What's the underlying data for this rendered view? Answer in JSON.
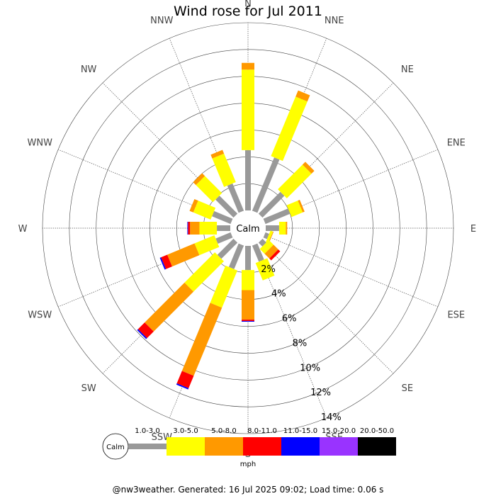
{
  "chart_data": {
    "type": "wind-rose",
    "title": "Wind rose for Jul 2011",
    "calm_label": "Calm",
    "directions": [
      "N",
      "NNE",
      "NE",
      "ENE",
      "E",
      "ESE",
      "SE",
      "SSE",
      "S",
      "SSW",
      "SW",
      "WSW",
      "W",
      "WNW",
      "NW",
      "NNW"
    ],
    "radial_ticks": [
      "2%",
      "4%",
      "6%",
      "8%",
      "10%",
      "12%",
      "14%"
    ],
    "rmax": 14,
    "unit": "mph",
    "speed_bins": [
      {
        "label": "1.0-3.0",
        "color": "#999999"
      },
      {
        "label": "3.0-5.0",
        "color": "#ffff00"
      },
      {
        "label": "5.0-8.0",
        "color": "#ff9900"
      },
      {
        "label": "8.0-11.0",
        "color": "#ff0000"
      },
      {
        "label": "11.0-15.0",
        "color": "#0000ff"
      },
      {
        "label": "15.0-20.0",
        "color": "#9933ff"
      },
      {
        "label": "20.0-50.0",
        "color": "#000000"
      }
    ],
    "series": [
      {
        "name": "1.0-3.0",
        "values": [
          4.5,
          4.3,
          2.3,
          2.0,
          1.0,
          0.3,
          0.4,
          1.3,
          1.8,
          1.9,
          1.7,
          1.2,
          1.0,
          1.5,
          1.9,
          2.2
        ]
      },
      {
        "name": "3.0-5.0",
        "values": [
          6.0,
          4.8,
          2.6,
          0.9,
          0.5,
          0.2,
          0.5,
          1.4,
          1.5,
          3.0,
          3.2,
          1.6,
          1.3,
          1.4,
          1.8,
          2.3
        ]
      },
      {
        "name": "5.0-8.0",
        "values": [
          0.5,
          0.5,
          0.3,
          0.15,
          0.1,
          0.05,
          0.5,
          0.0,
          2.2,
          5.5,
          4.2,
          2.2,
          0.7,
          0.3,
          0.3,
          0.3
        ]
      },
      {
        "name": "8.0-11.0",
        "values": [
          0,
          0,
          0,
          0,
          0,
          0,
          0.2,
          0,
          0.1,
          1.0,
          0.7,
          0.5,
          0.15,
          0,
          0,
          0
        ]
      },
      {
        "name": "11.0-15.0",
        "values": [
          0,
          0,
          0,
          0,
          0,
          0,
          0,
          0,
          0.05,
          0.1,
          0.1,
          0.1,
          0.05,
          0,
          0,
          0
        ]
      },
      {
        "name": "15.0-20.0",
        "values": [
          0,
          0,
          0,
          0,
          0,
          0,
          0,
          0,
          0,
          0,
          0,
          0,
          0,
          0,
          0,
          0
        ]
      },
      {
        "name": "20.0-50.0",
        "values": [
          0,
          0,
          0,
          0,
          0,
          0,
          0,
          0,
          0,
          0,
          0,
          0,
          0,
          0,
          0,
          0
        ]
      }
    ]
  },
  "footer": "@nw3weather. Generated: 16 Jul 2025 09:02; Load time: 0.06 s"
}
